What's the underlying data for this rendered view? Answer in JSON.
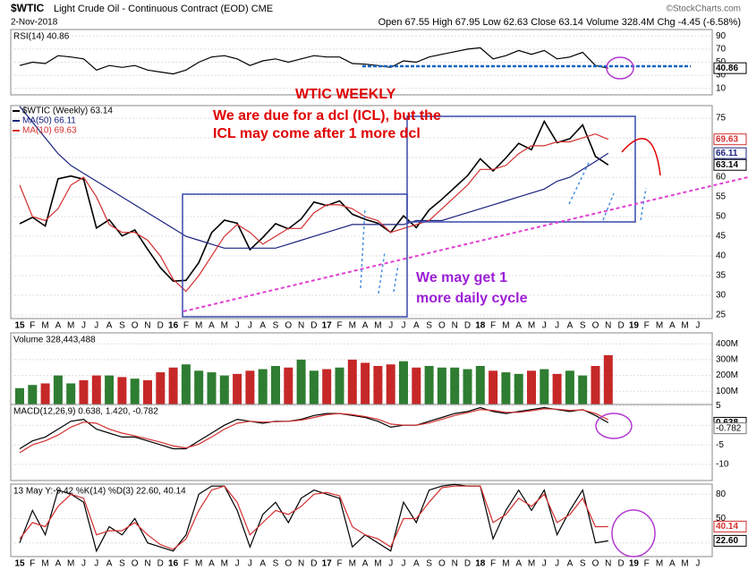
{
  "header": {
    "symbol": "$WTIC",
    "name": "Light Crude Oil - Continuous Contract (EOD) CME",
    "source": "©StockCharts.com",
    "date": "2-Nov-2018",
    "quote": "Open 67.55   High 67.95   Low 62.63   Close 63.14   Volume 328.4M   Chg -4.45 (-6.58%)"
  },
  "chart_data": [
    {
      "type": "line",
      "annotations": [
        "WTIC WEEKLY",
        "We are due for a dcl  (ICL), but the",
        "ICL may come after 1 more dcl",
        "We may get 1",
        "more daily cycle"
      ],
      "categories": [
        "15",
        "F",
        "M",
        "A",
        "M",
        "J",
        "J",
        "A",
        "S",
        "O",
        "N",
        "D",
        "16",
        "F",
        "M",
        "A",
        "M",
        "J",
        "J",
        "A",
        "S",
        "O",
        "N",
        "D",
        "17",
        "F",
        "M",
        "A",
        "M",
        "J",
        "J",
        "A",
        "S",
        "O",
        "N",
        "D",
        "18",
        "F",
        "M",
        "A",
        "M",
        "J",
        "J",
        "A",
        "S",
        "O",
        "N",
        "D",
        "19",
        "F",
        "M",
        "A",
        "M",
        "J"
      ],
      "ylim": [
        24.1,
        78.2
      ],
      "yticks": [
        25,
        30,
        35,
        40,
        45,
        50,
        55,
        60,
        65,
        70,
        75
      ],
      "grid": true,
      "series": [
        {
          "name": "$WTIC (Weekly) 63.14",
          "end_label": "63.14",
          "color": "#000000",
          "values": [
            48.2,
            49.8,
            47.6,
            59.6,
            60.3,
            59.5,
            47.1,
            49.2,
            45.1,
            46.6,
            41.7,
            37.0,
            33.6,
            33.8,
            38.3,
            45.9,
            49.1,
            48.3,
            41.6,
            44.7,
            48.2,
            46.9,
            49.4,
            53.7,
            52.8,
            54.0,
            50.6,
            49.3,
            48.3,
            46.0,
            50.2,
            47.2,
            51.7,
            54.4,
            57.4,
            60.4,
            64.7,
            61.6,
            64.9,
            68.6,
            67.0,
            74.2,
            68.8,
            69.8,
            73.3,
            65.3,
            63.14,
            null,
            null,
            null,
            null,
            null,
            null,
            null
          ]
        },
        {
          "name": "MA(50) 66.11",
          "end_label": "66.11",
          "color": "#1a237e",
          "values": [
            78,
            74,
            70,
            66,
            63,
            61,
            59,
            57,
            55,
            53,
            51,
            49,
            47,
            45,
            44,
            43,
            42,
            42,
            42,
            42,
            42,
            43,
            44,
            45,
            46,
            47,
            48,
            48,
            48,
            48,
            48,
            49,
            49,
            49,
            50,
            51,
            52,
            53,
            54,
            55,
            56,
            57,
            59,
            60,
            62,
            64,
            66.11,
            null,
            null,
            null,
            null,
            null,
            null,
            null
          ]
        },
        {
          "name": "MA(10) 69.63",
          "end_label": "69.63",
          "color": "#d32f2f",
          "values": [
            58,
            50,
            49,
            52,
            58,
            60,
            55,
            48,
            46,
            46,
            44,
            40,
            34,
            31,
            35,
            40,
            45,
            48,
            46,
            43,
            45,
            47,
            47,
            51,
            53,
            53,
            52,
            50,
            49,
            46,
            47,
            48,
            49,
            52,
            55,
            58,
            62,
            62,
            63,
            66,
            68,
            68,
            69,
            69,
            70,
            71,
            69.63,
            null,
            null,
            null,
            null,
            null,
            null,
            null
          ]
        }
      ]
    },
    {
      "type": "line",
      "label": "RSI(14) 40.86",
      "ylim": [
        0,
        100
      ],
      "yticks": [
        10,
        30,
        50,
        70,
        90
      ],
      "grid": true,
      "series": [
        {
          "end_label": "40.86",
          "color": "#000000",
          "values": [
            45,
            50,
            48,
            60,
            58,
            55,
            38,
            45,
            42,
            45,
            38,
            35,
            32,
            38,
            50,
            58,
            60,
            55,
            45,
            52,
            55,
            50,
            55,
            60,
            58,
            58,
            48,
            47,
            45,
            42,
            52,
            50,
            58,
            62,
            66,
            70,
            72,
            55,
            60,
            68,
            62,
            68,
            55,
            58,
            65,
            45,
            40.86,
            null,
            null,
            null,
            null,
            null,
            null,
            null
          ]
        }
      ]
    },
    {
      "type": "bar",
      "label": "Volume 328,443,488",
      "ylim": [
        0,
        469
      ],
      "yticks": [
        {
          "value": 100,
          "label": "100M"
        },
        {
          "value": 200,
          "label": "200M"
        },
        {
          "value": 300,
          "label": "300M"
        },
        {
          "value": 400,
          "label": "400M"
        }
      ],
      "grid": true,
      "series": [
        {
          "colors": [
            "#2e7d32",
            "#c62828"
          ],
          "values": [
            120,
            140,
            150,
            200,
            150,
            170,
            200,
            200,
            190,
            180,
            170,
            220,
            250,
            270,
            230,
            220,
            200,
            210,
            230,
            240,
            260,
            250,
            300,
            230,
            240,
            250,
            300,
            280,
            260,
            270,
            290,
            250,
            260,
            250,
            250,
            240,
            260,
            230,
            220,
            210,
            230,
            240,
            210,
            230,
            200,
            260,
            328.4,
            null,
            null,
            null,
            null,
            null,
            null,
            null
          ]
        }
      ]
    },
    {
      "type": "line",
      "label": "MACD(12,26,9) 0.638, 1.420, -0.782",
      "ylim": [
        -14.1,
        5.3
      ],
      "yticks": [
        -10,
        -5,
        0,
        5
      ],
      "grid": true,
      "histogram_last": -0.782,
      "series": [
        {
          "end_label": "0.638",
          "color": "#000000",
          "values": [
            -6,
            -4,
            -3,
            -1,
            1,
            1.5,
            -1,
            -2,
            -3,
            -3,
            -4,
            -5,
            -6,
            -6,
            -4,
            -2,
            0,
            1.5,
            1,
            0.5,
            1,
            1,
            1.5,
            2.5,
            3,
            3,
            2.5,
            2,
            1,
            -0.5,
            0,
            0,
            1,
            2,
            3,
            3.5,
            4.5,
            3.5,
            3,
            3.5,
            4,
            4.5,
            4,
            3.5,
            4,
            2.5,
            0.638,
            null,
            null,
            null,
            null,
            null,
            null,
            null
          ]
        },
        {
          "color": "#d32f2f",
          "values": [
            -7,
            -5,
            -4,
            -2.5,
            -0.5,
            0.8,
            0.5,
            -1,
            -2,
            -2.7,
            -3.5,
            -4.3,
            -5.3,
            -5.8,
            -4.8,
            -3,
            -1,
            0.5,
            1,
            0.8,
            0.9,
            1,
            1.3,
            2,
            2.7,
            3,
            2.7,
            2.2,
            1.5,
            0.3,
            0,
            0,
            0.6,
            1.5,
            2.5,
            3.2,
            4,
            3.8,
            3.3,
            3.3,
            3.7,
            4.2,
            4.1,
            3.8,
            3.9,
            3,
            1.42,
            null,
            null,
            null,
            null,
            null,
            null,
            null
          ]
        }
      ]
    },
    {
      "type": "line",
      "label": "13 May Y:-9.42  %K(14) %D(3) 22.60, 40.14",
      "ylim": [
        3.2,
        92.4
      ],
      "yticks": [
        20,
        50,
        80
      ],
      "grid": true,
      "categories": [
        "15",
        "F",
        "M",
        "A",
        "M",
        "J",
        "J",
        "A",
        "S",
        "O",
        "N",
        "D",
        "16",
        "F",
        "M",
        "A",
        "M",
        "J",
        "J",
        "A",
        "S",
        "O",
        "N",
        "D",
        "17",
        "F",
        "M",
        "A",
        "M",
        "J",
        "J",
        "A",
        "S",
        "O",
        "N",
        "D",
        "18",
        "F",
        "M",
        "A",
        "M",
        "J",
        "J",
        "A",
        "S",
        "O",
        "N",
        "D",
        "19",
        "F",
        "M",
        "A",
        "M",
        "J"
      ],
      "series": [
        {
          "end_label": "22.60",
          "color": "#000000",
          "values": [
            20,
            60,
            30,
            85,
            80,
            70,
            10,
            40,
            30,
            50,
            20,
            15,
            10,
            30,
            80,
            90,
            90,
            60,
            15,
            55,
            70,
            45,
            75,
            85,
            80,
            75,
            15,
            30,
            20,
            10,
            70,
            45,
            85,
            90,
            92,
            90,
            90,
            25,
            60,
            85,
            60,
            85,
            30,
            60,
            85,
            20,
            22.6,
            null,
            null,
            null,
            null,
            null,
            null,
            null
          ]
        },
        {
          "end_label": "40.14",
          "color": "#d32f2f",
          "values": [
            25,
            45,
            40,
            65,
            80,
            75,
            30,
            35,
            35,
            45,
            30,
            18,
            12,
            25,
            60,
            85,
            90,
            70,
            30,
            45,
            60,
            55,
            65,
            80,
            82,
            78,
            40,
            30,
            25,
            15,
            50,
            50,
            70,
            88,
            90,
            90,
            90,
            45,
            55,
            75,
            65,
            80,
            45,
            55,
            75,
            40,
            40.14,
            null,
            null,
            null,
            null,
            null,
            null,
            null
          ]
        }
      ]
    }
  ]
}
